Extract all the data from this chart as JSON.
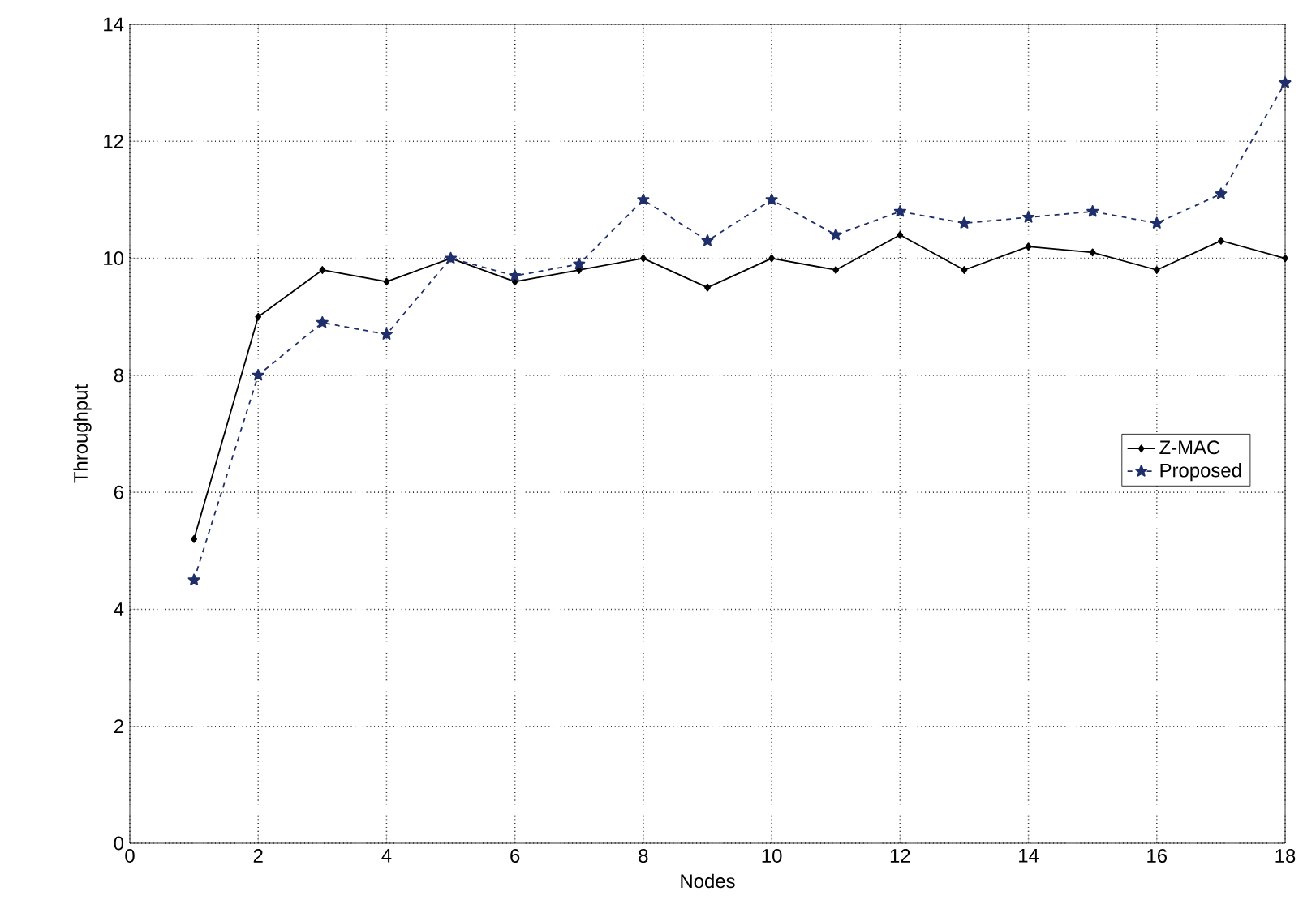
{
  "chart_data": {
    "type": "line",
    "xlabel": "Nodes",
    "ylabel": "Throughput",
    "x": [
      1,
      2,
      3,
      4,
      5,
      6,
      7,
      8,
      9,
      10,
      11,
      12,
      13,
      14,
      15,
      16,
      17,
      18
    ],
    "series": [
      {
        "name": "Z-MAC",
        "color": "#000000",
        "marker": "diamond",
        "line_style": "solid",
        "values": [
          5.2,
          9.0,
          9.8,
          9.6,
          10.0,
          9.6,
          9.8,
          10.0,
          9.5,
          10.0,
          9.8,
          10.4,
          9.8,
          10.2,
          10.1,
          9.8,
          10.3,
          10.0
        ]
      },
      {
        "name": "Proposed",
        "color": "#1f2f6b",
        "marker": "star",
        "line_style": "dashed",
        "values": [
          4.5,
          8.0,
          8.9,
          8.7,
          10.0,
          9.7,
          9.9,
          11.0,
          10.3,
          11.0,
          10.4,
          10.8,
          10.6,
          10.7,
          10.8,
          10.6,
          11.1,
          13.0
        ]
      }
    ],
    "xlim": [
      0,
      18
    ],
    "ylim": [
      0,
      14
    ],
    "xticks": [
      0,
      2,
      4,
      6,
      8,
      10,
      12,
      14,
      16,
      18
    ],
    "yticks": [
      0,
      2,
      4,
      6,
      8,
      10,
      12,
      14
    ],
    "grid": true,
    "legend": "right"
  }
}
